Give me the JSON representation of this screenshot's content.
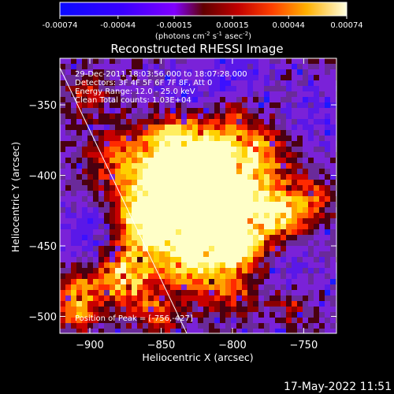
{
  "image": {
    "title": "Reconstructed RHESSI Image",
    "x_axis_label": "Heliocentric X (arcsec)",
    "y_axis_label": "Heliocentric Y (arcsec)",
    "x_ticks": [
      "-900",
      "-850",
      "-800",
      "-750"
    ],
    "y_ticks": [
      "-350",
      "-400",
      "-450",
      "-500"
    ],
    "x_range": [
      -921,
      -727
    ],
    "y_range": [
      -317,
      -512
    ],
    "colorbar": {
      "ticks": [
        "-0.00074",
        "-0.00044",
        "-0.00015",
        "0.00015",
        "0.00044",
        "0.00074"
      ],
      "range": [
        -0.00074,
        0.00074
      ],
      "unit_prefix": "(photons cm",
      "unit_exp1": "-2",
      "unit_mid1": " s",
      "unit_exp2": "-1",
      "unit_mid2": " asec",
      "unit_exp3": "-2",
      "unit_suffix": ")"
    },
    "info_lines": [
      "29-Dec-2011 18:03:56.000 to 18:07:28.000",
      "Detectors: 3F 4F 5F 6F 7F 8F, Att 0",
      "Energy Range: 12.0 - 25.0 keV",
      "Clean    Total counts: 1.03E+04"
    ],
    "peak_label": "Position of Peak = [-756,-427]",
    "peak_position": [
      -756,
      -427
    ],
    "timestamp": "17-May-2022 11:51",
    "colors": {
      "background": "#000000",
      "text": "#ffffff",
      "limb_line": "#ffffff"
    }
  }
}
